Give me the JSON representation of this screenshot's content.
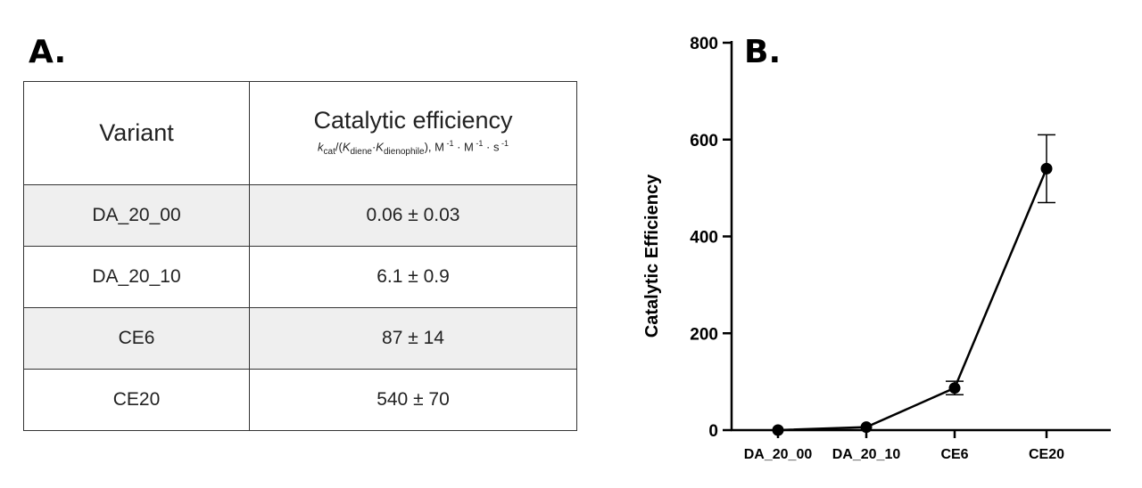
{
  "panel_a": {
    "label": "A.",
    "headers": {
      "variant": "Variant",
      "efficiency_title": "Catalytic efficiency",
      "efficiency_units": {
        "k": "k",
        "cat_sub": "cat",
        "open": "/(",
        "K1": "K",
        "diene_sub": "diene",
        "dot": "·",
        "K2": "K",
        "dienophile_sub": "dienophile",
        "close": "), M",
        "m1_sup": " -1",
        "mid1": " · M",
        "m2_sup": " -1",
        "mid2": " · s",
        "s_sup": " -1"
      }
    },
    "rows": [
      {
        "variant": "DA_20_00",
        "efficiency": "0.06 ± 0.03"
      },
      {
        "variant": "DA_20_10",
        "efficiency": "6.1 ± 0.9"
      },
      {
        "variant": "CE6",
        "efficiency": "87 ± 14"
      },
      {
        "variant": "CE20",
        "efficiency": "540 ± 70"
      }
    ],
    "shaded_row_color": "#efefef"
  },
  "panel_b": {
    "label": "B."
  },
  "chart_data": {
    "type": "line",
    "title": "",
    "xlabel": "",
    "ylabel": "Catalytic Efficiency",
    "categories": [
      "DA_20_00",
      "DA_20_10",
      "CE6",
      "CE20"
    ],
    "series": [
      {
        "values": [
          0.06,
          6.1,
          87,
          540
        ],
        "errors": [
          0.03,
          0.9,
          14,
          70
        ],
        "color": "#000000"
      }
    ],
    "ylim": [
      0,
      800
    ],
    "yticks": [
      0,
      200,
      400,
      600,
      800
    ],
    "grid": false,
    "legend": "none"
  }
}
